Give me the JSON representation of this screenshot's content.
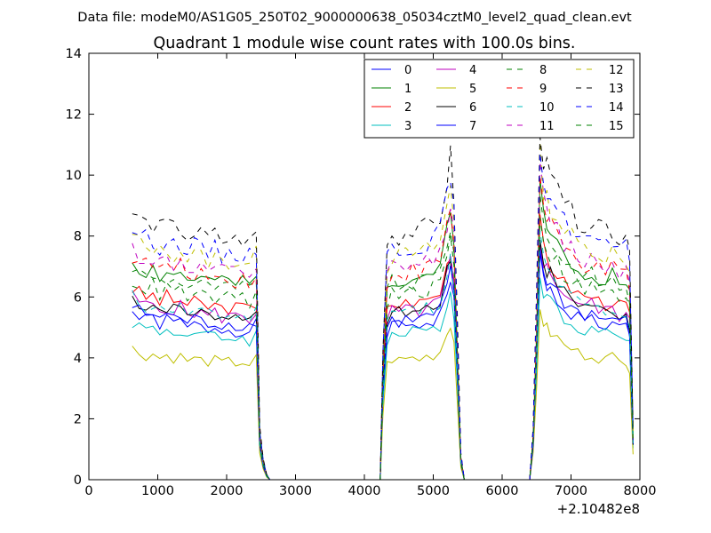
{
  "chart_data": {
    "type": "line",
    "suptitle": "Data file: modeM0/AS1G05_250T02_9000000638_05034cztM0_level2_quad_clean.evt",
    "title": "Quadrant 1 module wise count rates with 100.0s bins.",
    "xlabel": "",
    "ylabel": "",
    "x_offset_label": "+2.10482e8",
    "xlim": [
      0,
      8000
    ],
    "ylim": [
      0,
      14
    ],
    "x_ticks": [
      0,
      1000,
      2000,
      3000,
      4000,
      5000,
      6000,
      7000,
      8000
    ],
    "y_ticks": [
      0,
      2,
      4,
      6,
      8,
      10,
      12,
      14
    ],
    "x_tick_labels": [
      "0",
      "1000",
      "2000",
      "3000",
      "4000",
      "5000",
      "6000",
      "7000",
      "8000"
    ],
    "y_tick_labels": [
      "0",
      "2",
      "4",
      "6",
      "8",
      "10",
      "12",
      "14"
    ],
    "legend_position": "top-right",
    "legend_columns": 4,
    "profile": {
      "x": [
        630,
        730,
        830,
        930,
        1030,
        1130,
        1230,
        1330,
        1430,
        1530,
        1630,
        1730,
        1830,
        1930,
        2030,
        2130,
        2230,
        2330,
        2430,
        2480,
        2530,
        2580,
        2630,
        2700,
        2800,
        2900,
        3000,
        3500,
        4000,
        4230,
        4270,
        4330,
        4400,
        4500,
        4600,
        4700,
        4800,
        4900,
        5000,
        5100,
        5200,
        5250,
        5300,
        5350,
        5400,
        5450,
        5500,
        5600,
        5700,
        5800,
        5900,
        6000,
        6200,
        6400,
        6450,
        6500,
        6550,
        6600,
        6650,
        6700,
        6800,
        6900,
        7000,
        7100,
        7200,
        7300,
        7400,
        7500,
        7600,
        7700,
        7800,
        7850,
        7900
      ],
      "values": [
        1.0,
        0.97,
        0.95,
        0.96,
        0.93,
        0.95,
        0.93,
        0.94,
        0.91,
        0.92,
        0.91,
        0.9,
        0.91,
        0.89,
        0.9,
        0.89,
        0.9,
        0.88,
        0.92,
        0.2,
        0.08,
        0.02,
        0,
        0,
        0,
        0,
        0,
        0,
        0,
        0,
        0.5,
        0.88,
        0.92,
        0.91,
        0.92,
        0.93,
        0.92,
        0.94,
        0.95,
        0.98,
        1.12,
        1.2,
        1.05,
        0.6,
        0.1,
        0,
        0,
        0,
        0,
        0,
        0,
        0,
        0,
        0,
        0.2,
        0.7,
        1.33,
        1.2,
        1.15,
        1.12,
        1.08,
        1.02,
        1.0,
        0.97,
        0.95,
        0.96,
        0.93,
        0.92,
        0.94,
        0.9,
        0.91,
        0.85,
        0.2
      ]
    },
    "series": [
      {
        "name": "0",
        "color": "#0000ff",
        "dash": "solid",
        "level": 5.5,
        "seed": 1
      },
      {
        "name": "1",
        "color": "#008000",
        "dash": "solid",
        "level": 7.2,
        "seed": 2
      },
      {
        "name": "2",
        "color": "#ff0000",
        "dash": "solid",
        "level": 6.3,
        "seed": 3
      },
      {
        "name": "3",
        "color": "#00bfbf",
        "dash": "solid",
        "level": 5.2,
        "seed": 4
      },
      {
        "name": "4",
        "color": "#bf00bf",
        "dash": "solid",
        "level": 6.0,
        "seed": 5
      },
      {
        "name": "5",
        "color": "#bfbf00",
        "dash": "solid",
        "level": 4.3,
        "seed": 6
      },
      {
        "name": "6",
        "color": "#000000",
        "dash": "solid",
        "level": 6.0,
        "seed": 7
      },
      {
        "name": "7",
        "color": "#0000ff",
        "dash": "solid",
        "level": 5.7,
        "seed": 8
      },
      {
        "name": "8",
        "color": "#008000",
        "dash": "dashed",
        "level": 7.0,
        "seed": 9
      },
      {
        "name": "9",
        "color": "#ff0000",
        "dash": "dashed",
        "level": 7.4,
        "seed": 10
      },
      {
        "name": "10",
        "color": "#00bfbf",
        "dash": "dashed",
        "level": 6.0,
        "seed": 11
      },
      {
        "name": "11",
        "color": "#bf00bf",
        "dash": "dashed",
        "level": 7.6,
        "seed": 12
      },
      {
        "name": "12",
        "color": "#bfbf00",
        "dash": "dashed",
        "level": 8.0,
        "seed": 13
      },
      {
        "name": "13",
        "color": "#000000",
        "dash": "dashed",
        "level": 8.8,
        "seed": 14
      },
      {
        "name": "14",
        "color": "#0000ff",
        "dash": "dashed",
        "level": 8.3,
        "seed": 15
      },
      {
        "name": "15",
        "color": "#008000",
        "dash": "dashed",
        "level": 6.6,
        "seed": 16
      }
    ]
  }
}
